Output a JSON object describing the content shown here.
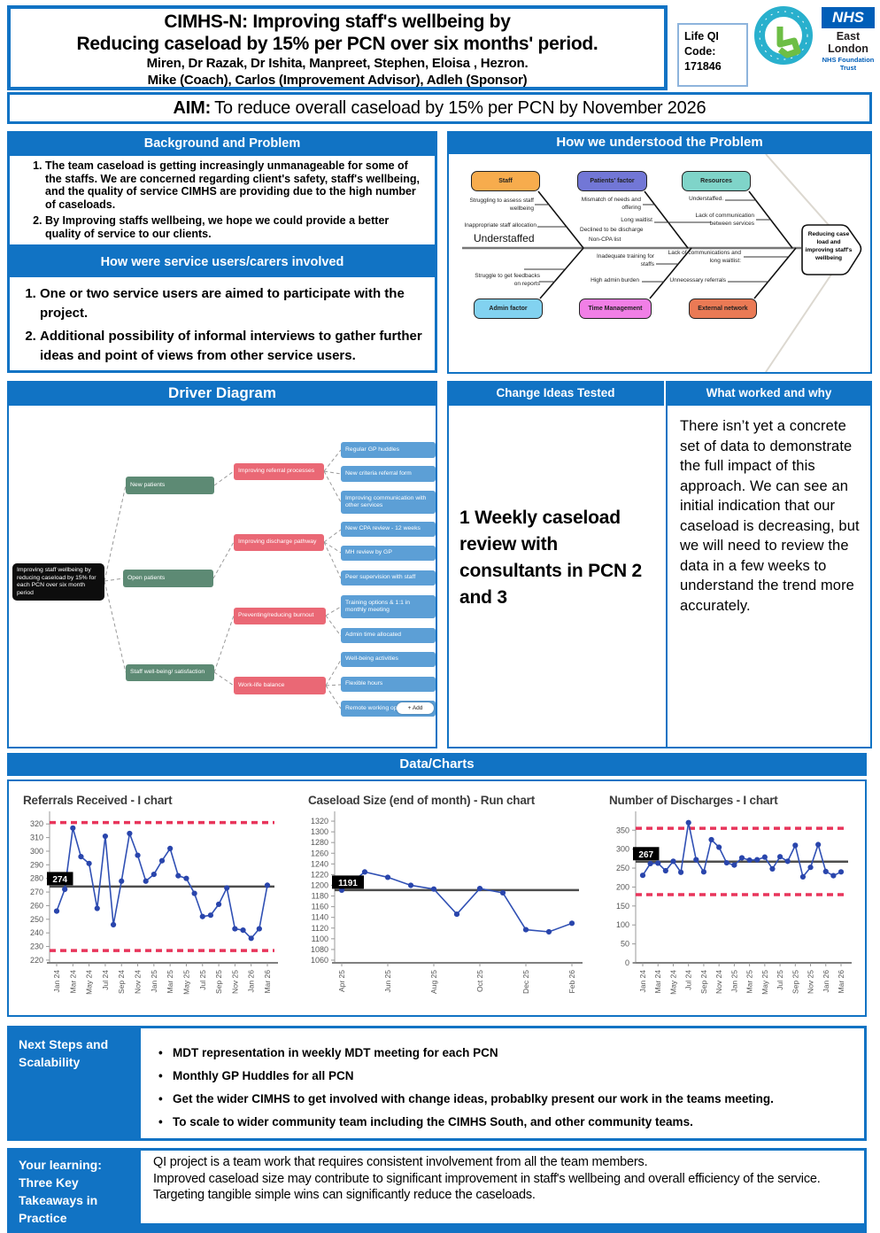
{
  "header": {
    "title_line1": "CIMHS-N:  Improving staff's wellbeing by",
    "title_line2": "Reducing caseload  by 15% per PCN over six months' period.",
    "team_line1": "Miren, Dr Razak, Dr Ishita, Manpreet, Stephen, Eloisa , Hezron.",
    "team_line2": "Mike (Coach), Carlos (Improvement Advisor), Adleh (Sponsor)",
    "lifeqi_label": "Life QI Code: 171846",
    "nhs_brand": "NHS",
    "nhs_org": "East London",
    "nhs_sub": "NHS Foundation Trust"
  },
  "aim": {
    "label": "AIM:",
    "text": "To reduce overall caseload by 15% per PCN  by November 2026"
  },
  "background": {
    "title": "Background and Problem",
    "items": [
      "The team caseload is getting increasingly unmanageable for some of the staffs. We are concerned regarding client's safety, staff's wellbeing, and the quality of service CIMHS are providing due to the high number of caseloads.",
      "By Improving staffs wellbeing, we hope we could provide a better quality of service to our clients."
    ]
  },
  "involvement": {
    "title": "How were service users/carers involved",
    "items": [
      "One or two service users are aimed to participate with the project.",
      "Additional possibility of informal interviews to gather further ideas and point of views from other service users."
    ]
  },
  "fishbone": {
    "title": "How we understood the Problem",
    "head": "Reducing case load and improving staff's wellbeing",
    "spine_label": "Understaffed",
    "top": [
      {
        "label": "Staff",
        "color": "#F7AC4D",
        "causes": [
          "Struggling to assess staff wellbeing",
          "Inappropriate staff allocation"
        ]
      },
      {
        "label": "Patients' factor",
        "color": "#7277D6",
        "causes": [
          "Mismatch of needs and offering",
          "Long waitlist",
          "Declined to be discharge",
          "Non-CPA list"
        ]
      },
      {
        "label": "Resources",
        "color": "#7FD4C9",
        "causes": [
          "Understaffed.",
          "Lack of communication between services"
        ]
      }
    ],
    "bottom": [
      {
        "label": "Admin factor",
        "color": "#82D2F0",
        "causes": [
          "Struggle to get feedbacks on reports"
        ]
      },
      {
        "label": "Time Management",
        "color": "#F17FE6",
        "causes": [
          "Inadequate training for staffs",
          "High admin burden"
        ]
      },
      {
        "label": "External network",
        "color": "#EA7A55",
        "causes": [
          "Lack of communications and long waitlist:",
          "Unnecessary referrals"
        ]
      }
    ]
  },
  "driver_diagram": {
    "title": "Driver Diagram",
    "aim": "Improving staff wellbeing by reducing caseload by 15% for each PCN over six month period",
    "primary": [
      "New patients",
      "Open patients",
      "Staff well-being/ satisfaction"
    ],
    "secondary": [
      "Improving referral processes",
      "Improving discharge pathway",
      "Preventing/reducing burnout",
      "Work-life balance"
    ],
    "ideas": [
      "Regular GP huddles",
      "New criteria referral form",
      "Improving communication with other services",
      "New CPA review - 12 weeks",
      "MH review by GP",
      "Peer supervision with staff",
      "Training options & 1:1 in monthly meeting",
      "Admin time allocated",
      "Well-being activities",
      "Flexible hours",
      "Remote working options"
    ],
    "add_button": "+ Add"
  },
  "change_ideas_tested": {
    "title": "Change Ideas Tested",
    "text": "1 Weekly caseload review with consultants  in PCN 2 and 3"
  },
  "what_worked": {
    "title": "What worked and why",
    "text": "There isn’t yet a concrete set of data to demonstrate the full impact of this approach. We can see an initial indication that our caseload is decreasing, but we will need to review the data in a few weeks to understand the trend more accurately."
  },
  "data_charts_title": "Data/Charts",
  "chart_data": [
    {
      "type": "line",
      "subtype": "i-chart",
      "title": "Referrals Received - I chart",
      "x": [
        "Jan 24",
        "Feb 24",
        "Mar 24",
        "Apr 24",
        "May 24",
        "Jun 24",
        "Jul 24",
        "Aug 24",
        "Sep 24",
        "Oct 24",
        "Nov 24",
        "Dec 24",
        "Jan 25",
        "Feb 25",
        "Mar 25",
        "Apr 25",
        "May 25",
        "Jun 25",
        "Jul 25",
        "Aug 25",
        "Sep 25",
        "Oct 25",
        "Nov 25",
        "Dec 25",
        "Jan 26",
        "Feb 26",
        "Mar 26"
      ],
      "values": [
        256,
        272,
        317,
        296,
        291,
        258,
        311,
        246,
        278,
        313,
        297,
        278,
        283,
        293,
        302,
        282,
        280,
        269,
        252,
        253,
        261,
        273,
        243,
        242,
        236,
        243,
        275
      ],
      "center": 274,
      "center_label": "274",
      "ucl": 321,
      "lcl": 227,
      "ylim": [
        218,
        326
      ],
      "yticks": [
        220,
        320,
        10
      ],
      "label_every": 2,
      "legend_position": "none",
      "grid": false
    },
    {
      "type": "line",
      "subtype": "run-chart",
      "title": "Caseload Size (end of month) - Run chart",
      "x": [
        "Apr 25",
        "May 25",
        "Jun 25",
        "Jul 25",
        "Aug 25",
        "Sep 25",
        "Oct 25",
        "Nov 25",
        "Dec 25",
        "Jan 26",
        "Feb 26"
      ],
      "values": [
        1191,
        1225,
        1215,
        1200,
        1193,
        1146,
        1194,
        1186,
        1117,
        1113,
        1129
      ],
      "center": 1191,
      "center_label": "1191",
      "ucl": null,
      "lcl": null,
      "ylim": [
        1055,
        1330
      ],
      "yticks": [
        1060,
        1320,
        20
      ],
      "label_every": 2,
      "legend_position": "none",
      "grid": false
    },
    {
      "type": "line",
      "subtype": "i-chart",
      "title": "Number of Discharges - I chart",
      "x": [
        "Jan 24",
        "Feb 24",
        "Mar 24",
        "Apr 24",
        "May 24",
        "Jun 24",
        "Jul 24",
        "Aug 24",
        "Sep 24",
        "Oct 24",
        "Nov 24",
        "Dec 24",
        "Jan 25",
        "Feb 25",
        "Mar 25",
        "Apr 25",
        "May 25",
        "Jun 25",
        "Jul 25",
        "Aug 25",
        "Sep 25",
        "Oct 25",
        "Nov 25",
        "Dec 25",
        "Jan 26",
        "Feb 26",
        "Mar 26"
      ],
      "values": [
        231,
        262,
        263,
        243,
        268,
        239,
        370,
        272,
        240,
        325,
        305,
        264,
        258,
        277,
        271,
        272,
        279,
        248,
        280,
        268,
        310,
        227,
        252,
        312,
        241,
        230,
        240
      ],
      "center": 267,
      "center_label": "267",
      "ucl": 355,
      "lcl": 180,
      "ylim": [
        0,
        388
      ],
      "yticks": [
        0,
        350,
        50
      ],
      "label_every": 2,
      "legend_position": "none",
      "grid": false
    }
  ],
  "next_steps": {
    "label": "Next Steps and Scalability",
    "items": [
      "MDT representation in weekly MDT meeting for each PCN",
      "Monthly GP Huddles for all PCN",
      "Get the wider CIMHS to get involved with change ideas, probablky present our work in the teams meeting.",
      "To scale to wider community team including the CIMHS South, and other community teams."
    ]
  },
  "learning": {
    "label": "Your learning: Three Key Takeaways in Practice",
    "lines": [
      "QI project is a team work that requires consistent involvement from all the team members.",
      "Improved caseload size may contribute to significant improvement in staff's wellbeing and overall efficiency of the service.",
      "Targeting tangible simple wins can significantly reduce the caseloads."
    ]
  },
  "colors": {
    "accent_blue": "#1173C4",
    "nhs_blue": "#005EB8",
    "chart_line_blue": "#3050B4",
    "chart_limit_red": "#E8355B",
    "chart_center_gray": "#4D4D4D",
    "driver_aim_black": "#0D0D0D",
    "driver_primary_green": "#5D8A74",
    "driver_secondary_pink": "#EA6875",
    "driver_idea_blue": "#5C9FD6"
  }
}
